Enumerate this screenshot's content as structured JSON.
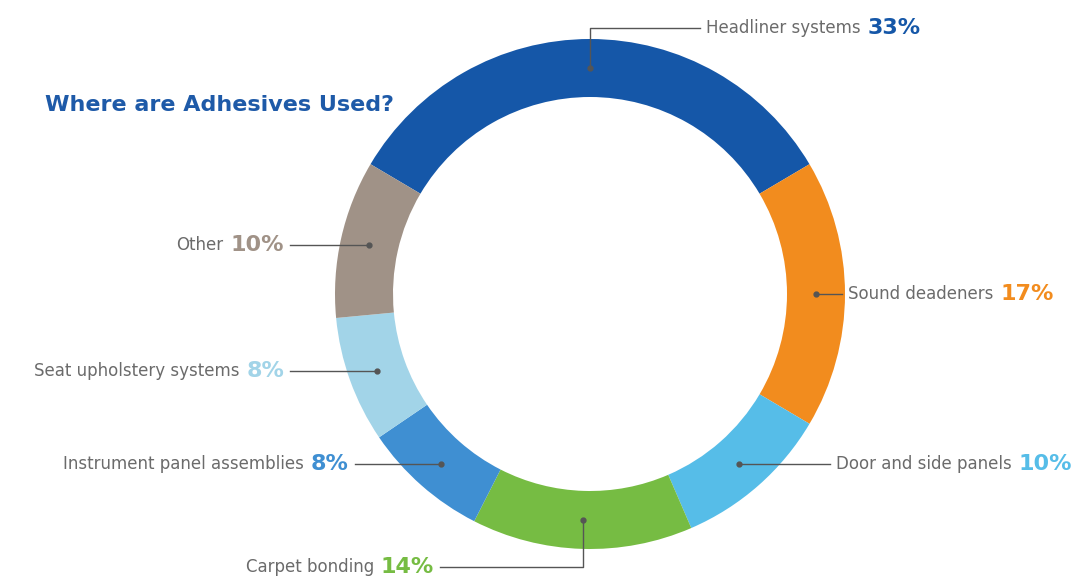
{
  "chart_data": {
    "type": "pie",
    "title": "Where are Adhesives Used?",
    "categories": [
      "Headliner systems",
      "Sound deadeners",
      "Door and side panels",
      "Carpet bonding",
      "Instrument panel assemblies",
      "Seat upholstery systems",
      "Other"
    ],
    "values": [
      33,
      17,
      10,
      14,
      8,
      8,
      10
    ],
    "value_labels": [
      "33%",
      "17%",
      "10%",
      "14%",
      "8%",
      "8%",
      "10%"
    ],
    "colors": [
      "#1557a8",
      "#f28c1e",
      "#56bde8",
      "#76bc43",
      "#3f8fd2",
      "#a2d4e8",
      "#a09287"
    ],
    "data_labels": true
  }
}
